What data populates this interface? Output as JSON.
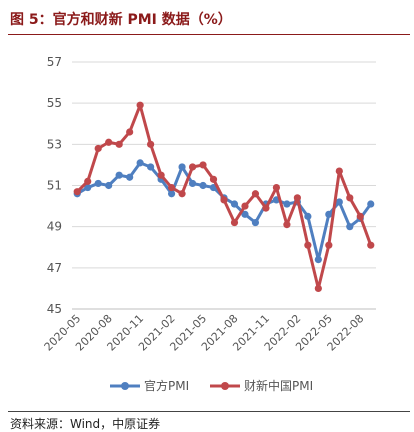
{
  "header": {
    "title": "图 5：官方和财新 PMI 数据（%）",
    "source": "资料来源：Wind，中原证券"
  },
  "chart_data": {
    "type": "line",
    "title": "",
    "xlabel": "",
    "ylabel": "",
    "ylim": [
      45,
      57
    ],
    "yticks": [
      45,
      47,
      49,
      51,
      53,
      55,
      57
    ],
    "grid": "horizontal",
    "legend_position": "bottom",
    "x": [
      "2020-05",
      "2020-06",
      "2020-07",
      "2020-08",
      "2020-09",
      "2020-10",
      "2020-11",
      "2020-12",
      "2021-01",
      "2021-02",
      "2021-03",
      "2021-04",
      "2021-05",
      "2021-06",
      "2021-07",
      "2021-08",
      "2021-09",
      "2021-10",
      "2021-11",
      "2021-12",
      "2022-01",
      "2022-02",
      "2022-03",
      "2022-04",
      "2022-05",
      "2022-06",
      "2022-07",
      "2022-08",
      "2022-09"
    ],
    "xtick_labels": [
      "2020-05",
      "2020-08",
      "2020-11",
      "2021-02",
      "2021-05",
      "2021-08",
      "2021-11",
      "2022-02",
      "2022-05",
      "2022-08"
    ],
    "series": [
      {
        "name": "官方PMI",
        "color": "#4f7fc0",
        "values": [
          50.6,
          50.9,
          51.1,
          51.0,
          51.5,
          51.4,
          52.1,
          51.9,
          51.3,
          50.6,
          51.9,
          51.1,
          51.0,
          50.9,
          50.4,
          50.1,
          49.6,
          49.2,
          50.1,
          50.3,
          50.1,
          50.2,
          49.5,
          47.4,
          49.6,
          50.2,
          49.0,
          49.4,
          50.1
        ]
      },
      {
        "name": "财新中国PMI",
        "color": "#c0484b",
        "values": [
          50.7,
          51.2,
          52.8,
          53.1,
          53.0,
          53.6,
          54.9,
          53.0,
          51.5,
          50.9,
          50.6,
          51.9,
          52.0,
          51.3,
          50.3,
          49.2,
          50.0,
          50.6,
          49.9,
          50.9,
          49.1,
          50.4,
          48.1,
          46.0,
          48.1,
          51.7,
          50.4,
          49.5,
          48.1
        ]
      }
    ]
  }
}
